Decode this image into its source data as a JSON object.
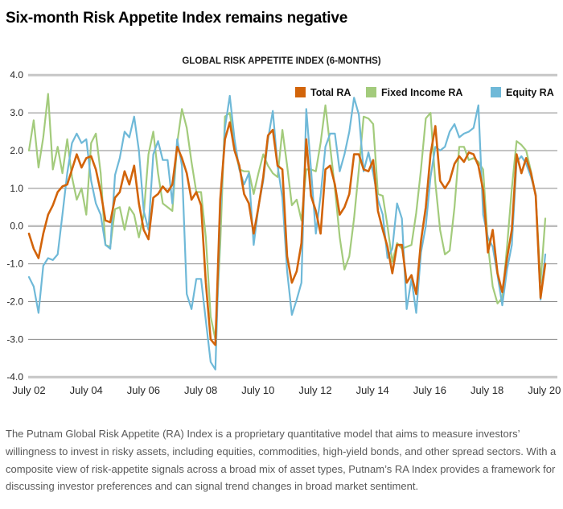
{
  "page": {
    "title": "Six-month Risk Appetite Index remains negative"
  },
  "footer": {
    "text": "The Putnam Global Risk Appetite (RA) Index is a proprietary quantitative model that aims to measure investors’ willingness to invest in risky assets, including equities, commodities, high-yield bonds, and other spread sectors. With a composite view of risk-appetite signals across a broad mix of asset types, Putnam’s RA Index provides a framework for discussing investor preferences and can signal trend changes in broad market sentiment."
  },
  "chart_data": {
    "type": "line",
    "title": "GLOBAL RISK APPETITE INDEX (6-MONTHS)",
    "x_start": "July 2002",
    "x_end": "July 2020",
    "x_step_months": 2,
    "x_tick_labels": [
      "July 02",
      "July 04",
      "July 06",
      "July 08",
      "July 10",
      "July 12",
      "July 14",
      "July 16",
      "July 18",
      "July 20"
    ],
    "y_tick_labels": [
      "4.0",
      "3.0",
      "2.0",
      "1.0",
      "0.0",
      "-1.0",
      "-2.0",
      "-3.0",
      "-4.0"
    ],
    "ylim": [
      -4.0,
      4.0
    ],
    "grid": "horizontal",
    "legend_position": "top-right-inside",
    "colors": {
      "total": "#d2640a",
      "fixed_income": "#a3cb7c",
      "equity": "#6fb9d8",
      "grid_inner": "#8a8a8a",
      "grid_zero": "#bdbdbd",
      "grid_border": "#c6c6c6",
      "axis_text": "#262626"
    },
    "series": [
      {
        "name": "Total RA",
        "color": "#d2640a",
        "width": 2.6,
        "values": [
          -0.2,
          -0.6,
          -0.85,
          -0.2,
          0.3,
          0.55,
          0.9,
          1.05,
          1.1,
          1.5,
          1.9,
          1.55,
          1.8,
          1.85,
          1.5,
          0.9,
          0.15,
          0.1,
          0.75,
          0.9,
          1.45,
          1.1,
          1.6,
          0.6,
          -0.1,
          -0.35,
          0.75,
          0.85,
          1.05,
          0.9,
          1.1,
          2.1,
          1.8,
          1.4,
          0.7,
          0.9,
          0.55,
          -1.5,
          -3.0,
          -3.15,
          0.7,
          2.3,
          2.75,
          2.0,
          1.6,
          0.85,
          0.6,
          -0.2,
          0.5,
          1.3,
          2.4,
          2.55,
          1.6,
          1.5,
          -0.8,
          -1.5,
          -1.2,
          -0.45,
          2.3,
          0.8,
          0.4,
          -0.2,
          1.5,
          1.6,
          1.1,
          0.3,
          0.5,
          0.85,
          1.9,
          1.9,
          1.5,
          1.45,
          1.75,
          0.4,
          -0.1,
          -0.55,
          -1.25,
          -0.5,
          -0.5,
          -1.5,
          -1.3,
          -1.8,
          -0.4,
          0.5,
          1.9,
          2.65,
          1.2,
          1.0,
          1.2,
          1.65,
          1.85,
          1.7,
          1.95,
          1.9,
          1.6,
          0.95,
          -0.7,
          -0.1,
          -1.25,
          -1.75,
          -0.85,
          -0.1,
          1.9,
          1.4,
          1.8,
          1.4,
          0.8,
          -1.9,
          -1.0
        ]
      },
      {
        "name": "Fixed Income RA",
        "color": "#a3cb7c",
        "width": 2.2,
        "values": [
          2.0,
          2.8,
          1.55,
          2.35,
          3.5,
          1.5,
          2.1,
          1.4,
          2.3,
          1.3,
          0.7,
          1.0,
          0.3,
          2.2,
          2.45,
          1.4,
          -0.5,
          -0.55,
          0.45,
          0.5,
          -0.1,
          0.5,
          0.3,
          -0.3,
          0.3,
          1.9,
          2.5,
          1.4,
          0.6,
          0.5,
          0.4,
          2.2,
          3.1,
          2.6,
          1.7,
          0.9,
          0.9,
          -0.3,
          -2.4,
          -3.0,
          -0.5,
          2.9,
          3.0,
          2.1,
          1.5,
          1.45,
          1.45,
          0.85,
          1.4,
          1.9,
          1.6,
          1.4,
          1.3,
          2.55,
          1.6,
          0.55,
          0.7,
          0.15,
          1.5,
          1.5,
          1.45,
          2.2,
          3.2,
          2.1,
          1.0,
          -0.3,
          -1.15,
          -0.8,
          0.2,
          1.5,
          2.9,
          2.85,
          2.7,
          0.85,
          0.8,
          0.0,
          -0.95,
          -0.45,
          -0.6,
          -0.55,
          -0.5,
          0.35,
          1.5,
          2.85,
          3.0,
          1.15,
          -0.1,
          -0.75,
          -0.65,
          0.5,
          2.1,
          2.1,
          1.75,
          1.8,
          1.7,
          1.5,
          -0.5,
          -1.6,
          -2.05,
          -1.9,
          -0.55,
          1.0,
          2.25,
          2.15,
          2.0,
          1.45,
          0.8,
          -1.5,
          0.2
        ]
      },
      {
        "name": "Equity RA",
        "color": "#6fb9d8",
        "width": 2.2,
        "values": [
          -1.35,
          -1.6,
          -2.3,
          -1.05,
          -0.85,
          -0.9,
          -0.75,
          0.3,
          1.4,
          2.2,
          2.45,
          2.2,
          2.3,
          1.2,
          0.6,
          0.3,
          -0.5,
          -0.6,
          1.35,
          1.8,
          2.5,
          2.35,
          2.9,
          2.0,
          0.4,
          -0.1,
          1.9,
          2.25,
          1.75,
          1.75,
          0.6,
          2.3,
          1.6,
          -1.8,
          -2.2,
          -1.4,
          -1.4,
          -2.5,
          -3.6,
          -3.8,
          0.3,
          2.6,
          3.45,
          2.3,
          1.5,
          1.1,
          1.4,
          -0.5,
          0.5,
          1.2,
          2.3,
          3.05,
          1.6,
          0.75,
          -1.2,
          -2.35,
          -1.95,
          -1.5,
          3.1,
          1.5,
          -0.2,
          0.8,
          2.1,
          2.45,
          2.45,
          1.45,
          1.9,
          2.5,
          3.4,
          2.95,
          1.45,
          1.95,
          1.4,
          0.7,
          0.3,
          -0.85,
          -0.6,
          0.6,
          0.2,
          -2.2,
          -1.4,
          -2.3,
          -0.7,
          0.0,
          1.3,
          2.1,
          2.0,
          2.1,
          2.5,
          2.7,
          2.35,
          2.45,
          2.5,
          2.6,
          3.2,
          0.3,
          -0.3,
          -0.55,
          -1.3,
          -2.1,
          -1.15,
          -0.5,
          1.7,
          1.85,
          1.65,
          1.3,
          0.85,
          -1.95,
          -0.75
        ]
      }
    ]
  }
}
